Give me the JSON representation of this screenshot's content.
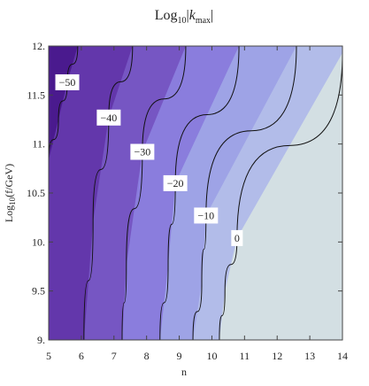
{
  "chart_data": {
    "type": "contour",
    "title_parts": [
      "Log",
      "10",
      "|",
      "k",
      "max",
      "|"
    ],
    "x_label": "n",
    "y_label_parts": [
      "Log",
      "10",
      "(f/GeV)"
    ],
    "xlim": [
      5,
      14
    ],
    "ylim": [
      9,
      12
    ],
    "xticks": [
      5,
      6,
      7,
      8,
      9,
      10,
      11,
      12,
      13,
      14
    ],
    "yticks": [
      {
        "value": 9,
        "label": "9."
      },
      9.5,
      {
        "value": 10,
        "label": "10."
      },
      10.5,
      {
        "value": 11,
        "label": "11."
      },
      11.5,
      {
        "value": 12,
        "label": "12."
      }
    ],
    "region_colors": [
      "#4a1a8e",
      "#6337ab",
      "#7656c3",
      "#8a7ddd",
      "#9ea3e6",
      "#b2bce9",
      "#d3dfe3"
    ],
    "line_color": "#111111",
    "contours": [
      {
        "level": {
          "value": -50,
          "label": "−50"
        },
        "x": [
          5.89,
          5.57,
          5.3,
          5
        ],
        "y": [
          12,
          11.63,
          11.25,
          10.84
        ]
      },
      {
        "level": {
          "value": -40,
          "label": "−40"
        },
        "x": [
          7.57,
          6.84,
          6.36,
          6.08
        ],
        "y": [
          12,
          11.27,
          10.21,
          9
        ]
      },
      {
        "level": {
          "value": -30,
          "label": "−30"
        },
        "x": [
          9.2,
          7.87,
          7.38,
          7.25
        ],
        "y": [
          12,
          10.92,
          9.76,
          9
        ]
      },
      {
        "level": {
          "value": -20,
          "label": "−20"
        },
        "x": [
          10.83,
          8.88,
          8.66,
          8.41
        ],
        "y": [
          12,
          10.6,
          9.76,
          9
        ]
      },
      {
        "level": {
          "value": -10,
          "label": "−10"
        },
        "x": [
          12.59,
          9.82,
          9.69,
          9.42
        ],
        "y": [
          12,
          10.27,
          9.58,
          9
        ]
      },
      {
        "level": 0,
        "x": [
          14,
          10.77,
          10.4,
          10.23
        ],
        "y": [
          11.93,
          10.04,
          9.5,
          9
        ]
      }
    ]
  }
}
